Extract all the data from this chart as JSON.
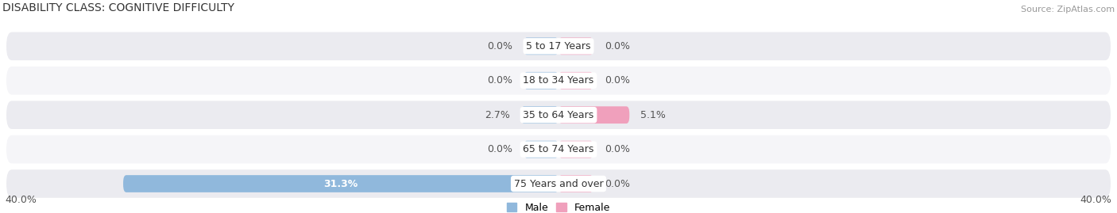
{
  "title": "DISABILITY CLASS: COGNITIVE DIFFICULTY",
  "source": "Source: ZipAtlas.com",
  "categories": [
    "5 to 17 Years",
    "18 to 34 Years",
    "35 to 64 Years",
    "65 to 74 Years",
    "75 Years and over"
  ],
  "male_values": [
    0.0,
    0.0,
    2.7,
    0.0,
    31.3
  ],
  "female_values": [
    0.0,
    0.0,
    5.1,
    0.0,
    0.0
  ],
  "x_max": 40.0,
  "male_color": "#90b8dc",
  "female_color": "#f0a0bc",
  "row_bg_color": "#ebebf0",
  "row_bg_light": "#f5f5f8",
  "title_fontsize": 10,
  "label_fontsize": 9,
  "source_fontsize": 8,
  "tick_fontsize": 9,
  "center_label_color": "#333333",
  "value_color": "#555555",
  "value_inside_color": "#ffffff",
  "zero_stub": 2.5,
  "category_bg": "#ffffff"
}
